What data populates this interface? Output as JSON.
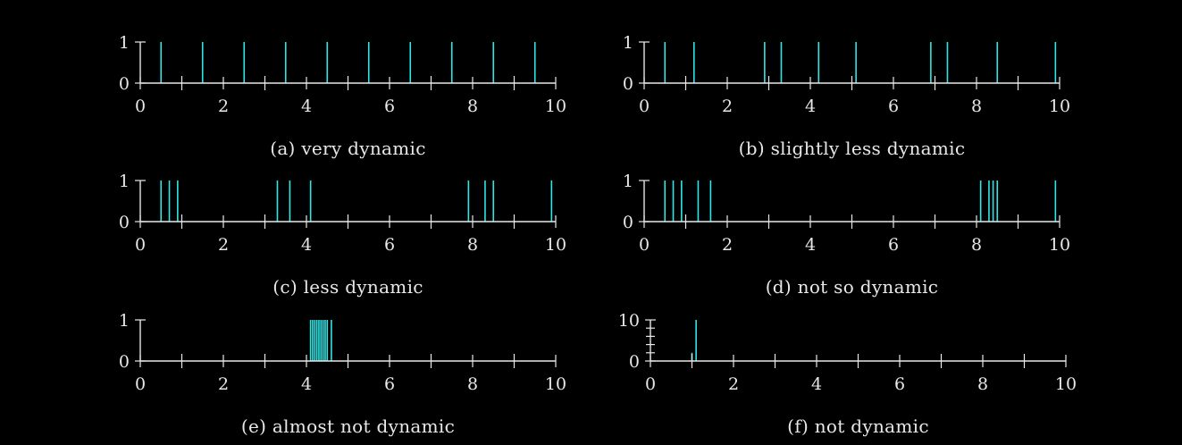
{
  "colors": {
    "background": "#000000",
    "axis": "#e8e8e8",
    "spike": "#2ee6e6"
  },
  "chart_data": [
    {
      "type": "bar",
      "title": "",
      "caption": "(a) very dynamic",
      "xlim": [
        0,
        10
      ],
      "ylim": [
        0,
        1
      ],
      "xticks": [
        0,
        2,
        4,
        6,
        8,
        10
      ],
      "yticks": [
        0,
        1
      ],
      "x_minor_ticks": [
        1,
        3,
        5,
        7,
        9
      ],
      "y_minor_ticks": [],
      "spikes": [
        {
          "x": 0.5,
          "y": 1
        },
        {
          "x": 1.5,
          "y": 1
        },
        {
          "x": 2.5,
          "y": 1
        },
        {
          "x": 3.5,
          "y": 1
        },
        {
          "x": 4.5,
          "y": 1
        },
        {
          "x": 5.5,
          "y": 1
        },
        {
          "x": 6.5,
          "y": 1
        },
        {
          "x": 7.5,
          "y": 1
        },
        {
          "x": 8.5,
          "y": 1
        },
        {
          "x": 9.5,
          "y": 1
        }
      ]
    },
    {
      "type": "bar",
      "title": "",
      "caption": "(b) slightly less dynamic",
      "xlim": [
        0,
        10
      ],
      "ylim": [
        0,
        1
      ],
      "xticks": [
        0,
        2,
        4,
        6,
        8,
        10
      ],
      "yticks": [
        0,
        1
      ],
      "x_minor_ticks": [
        1,
        3,
        5,
        7,
        9
      ],
      "y_minor_ticks": [],
      "spikes": [
        {
          "x": 0.5,
          "y": 1
        },
        {
          "x": 1.2,
          "y": 1
        },
        {
          "x": 2.9,
          "y": 1
        },
        {
          "x": 3.3,
          "y": 1
        },
        {
          "x": 4.2,
          "y": 1
        },
        {
          "x": 5.1,
          "y": 1
        },
        {
          "x": 6.9,
          "y": 1
        },
        {
          "x": 7.3,
          "y": 1
        },
        {
          "x": 8.5,
          "y": 1
        },
        {
          "x": 9.9,
          "y": 1
        }
      ]
    },
    {
      "type": "bar",
      "title": "",
      "caption": "(c) less dynamic",
      "xlim": [
        0,
        10
      ],
      "ylim": [
        0,
        1
      ],
      "xticks": [
        0,
        2,
        4,
        6,
        8,
        10
      ],
      "yticks": [
        0,
        1
      ],
      "x_minor_ticks": [
        1,
        3,
        5,
        7,
        9
      ],
      "y_minor_ticks": [],
      "spikes": [
        {
          "x": 0.5,
          "y": 1
        },
        {
          "x": 0.7,
          "y": 1
        },
        {
          "x": 0.9,
          "y": 1
        },
        {
          "x": 3.3,
          "y": 1
        },
        {
          "x": 3.6,
          "y": 1
        },
        {
          "x": 4.1,
          "y": 1
        },
        {
          "x": 7.9,
          "y": 1
        },
        {
          "x": 8.3,
          "y": 1
        },
        {
          "x": 8.5,
          "y": 1
        },
        {
          "x": 9.9,
          "y": 1
        }
      ]
    },
    {
      "type": "bar",
      "title": "",
      "caption": "(d) not so dynamic",
      "xlim": [
        0,
        10
      ],
      "ylim": [
        0,
        1
      ],
      "xticks": [
        0,
        2,
        4,
        6,
        8,
        10
      ],
      "yticks": [
        0,
        1
      ],
      "x_minor_ticks": [
        1,
        3,
        5,
        7,
        9
      ],
      "y_minor_ticks": [],
      "spikes": [
        {
          "x": 0.5,
          "y": 1
        },
        {
          "x": 0.7,
          "y": 1
        },
        {
          "x": 0.9,
          "y": 1
        },
        {
          "x": 1.3,
          "y": 1
        },
        {
          "x": 1.6,
          "y": 1
        },
        {
          "x": 8.1,
          "y": 1
        },
        {
          "x": 8.3,
          "y": 1
        },
        {
          "x": 8.4,
          "y": 1
        },
        {
          "x": 8.5,
          "y": 1
        },
        {
          "x": 9.9,
          "y": 1
        }
      ]
    },
    {
      "type": "bar",
      "title": "",
      "caption": "(e) almost not dynamic",
      "xlim": [
        0,
        10
      ],
      "ylim": [
        0,
        1
      ],
      "xticks": [
        0,
        2,
        4,
        6,
        8,
        10
      ],
      "yticks": [
        0,
        1
      ],
      "x_minor_ticks": [
        1,
        3,
        5,
        7,
        9
      ],
      "y_minor_ticks": [],
      "spikes": [
        {
          "x": 4.1,
          "y": 1
        },
        {
          "x": 4.15,
          "y": 1
        },
        {
          "x": 4.2,
          "y": 1
        },
        {
          "x": 4.25,
          "y": 1
        },
        {
          "x": 4.3,
          "y": 1
        },
        {
          "x": 4.35,
          "y": 1
        },
        {
          "x": 4.4,
          "y": 1
        },
        {
          "x": 4.45,
          "y": 1
        },
        {
          "x": 4.5,
          "y": 1
        },
        {
          "x": 4.6,
          "y": 1
        }
      ]
    },
    {
      "type": "bar",
      "title": "",
      "caption": "(f) not dynamic",
      "xlim": [
        0,
        10
      ],
      "ylim": [
        0,
        10
      ],
      "xticks": [
        0,
        2,
        4,
        6,
        8,
        10
      ],
      "yticks": [
        0,
        10
      ],
      "x_minor_ticks": [
        1,
        3,
        5,
        7,
        9
      ],
      "y_minor_ticks": [
        2,
        4,
        6,
        8
      ],
      "spikes": [
        {
          "x": 1.0,
          "y": 2
        },
        {
          "x": 1.1,
          "y": 10
        }
      ]
    }
  ]
}
